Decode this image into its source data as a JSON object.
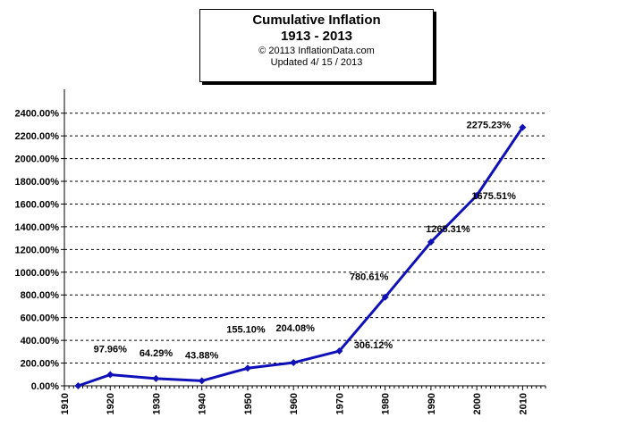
{
  "header": {
    "title": "Cumulative Inflation",
    "subtitle": "1913 - 2013",
    "copyright": "© 20113 InflationData.com",
    "updated": "Updated   4/ 15 / 2013"
  },
  "chart_data": {
    "type": "line",
    "title": "Cumulative Inflation",
    "subtitle": "1913 - 2013",
    "xlabel": "",
    "ylabel": "",
    "xlim": [
      1910,
      2015
    ],
    "ylim": [
      0,
      2500
    ],
    "x_ticks": [
      "1910",
      "1920",
      "1930",
      "1940",
      "1950",
      "1960",
      "1970",
      "1980",
      "1990",
      "2000",
      "2010"
    ],
    "y_ticks": [
      "0.00%",
      "200.00%",
      "400.00%",
      "600.00%",
      "800.00%",
      "1000.00%",
      "1200.00%",
      "1400.00%",
      "1600.00%",
      "1800.00%",
      "2000.00%",
      "2200.00%",
      "2400.00%"
    ],
    "grid": "horizontal-dashed",
    "legend": "none",
    "series": [
      {
        "color": "#1010b8",
        "x": [
          1913,
          1920,
          1930,
          1940,
          1950,
          1960,
          1970,
          1980,
          1990,
          2000,
          2010
        ],
        "values": [
          0,
          97.96,
          64.29,
          43.88,
          155.1,
          204.08,
          306.12,
          780.61,
          1265.31,
          1675.51,
          2275.23
        ],
        "labels": [
          "",
          "97.96%",
          "64.29%",
          "43.88%",
          "155.10%",
          "204.08%",
          "306.12%",
          "780.61%",
          "1265.31%",
          "1675.51%",
          "2275.23%"
        ]
      }
    ]
  }
}
